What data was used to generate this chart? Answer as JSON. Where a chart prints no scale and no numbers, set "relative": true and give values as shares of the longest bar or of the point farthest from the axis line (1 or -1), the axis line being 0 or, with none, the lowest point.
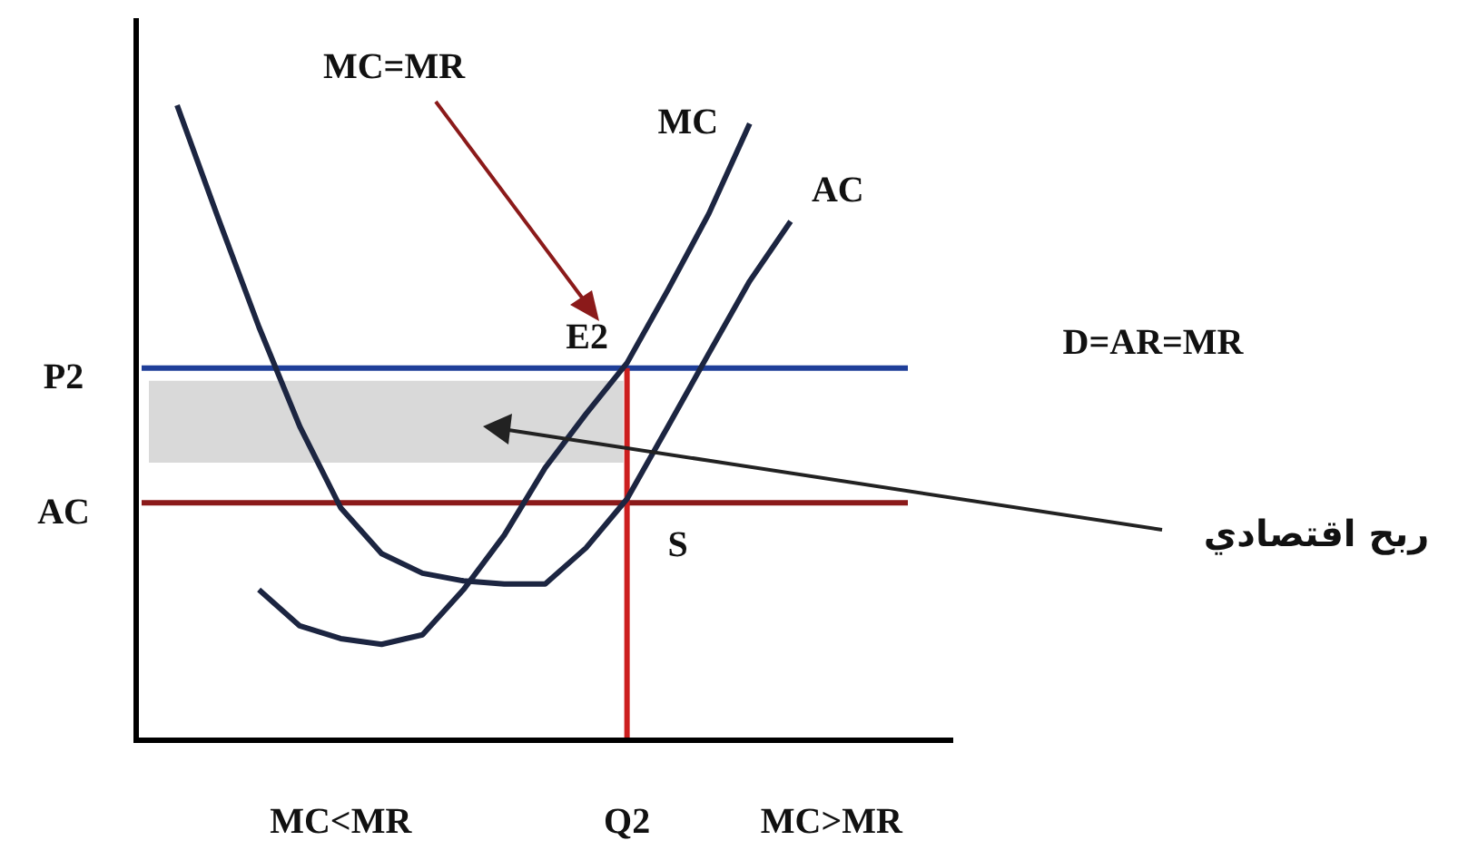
{
  "chart_data": {
    "type": "line",
    "relative": true,
    "legend": false,
    "marker": "none",
    "categories": [
      null,
      null,
      null,
      null,
      null,
      "MC<MR",
      null,
      null,
      null,
      null,
      null,
      null,
      "Q2",
      null,
      null,
      null,
      null,
      "MC>MR",
      null,
      null
    ],
    "series": [
      {
        "name": "AC",
        "color": "#1c2541",
        "values": [
          null,
          1.0,
          0.823,
          0.651,
          0.494,
          0.366,
          0.294,
          0.263,
          0.251,
          0.246,
          0.246,
          0.303,
          0.38,
          0.494,
          0.609,
          0.723,
          0.817,
          null,
          null,
          null
        ]
      },
      {
        "name": "MC",
        "color": "#1c2541",
        "values": [
          null,
          null,
          null,
          0.237,
          0.18,
          0.16,
          0.151,
          0.166,
          0.237,
          0.323,
          0.429,
          0.514,
          0.594,
          0.709,
          0.829,
          0.971,
          null,
          null,
          null,
          null
        ]
      }
    ],
    "ref_lines": [
      {
        "axis": "y",
        "value": 0.586,
        "label": "P2",
        "color": "#1f3f99"
      },
      {
        "axis": "y",
        "value": 0.374,
        "label": "AC",
        "color": "#8b1a1a"
      },
      {
        "axis": "x",
        "value": "Q2",
        "color": "#cc1f1f"
      }
    ],
    "bands": [
      {
        "axis": "y",
        "from": 0.437,
        "to": 0.566,
        "color": "#d9d9d9"
      }
    ],
    "annotations": [
      "MC=MR",
      {
        "text": "E2",
        "x": "Q2",
        "y": 0.586
      },
      {
        "text": "S",
        "x": "Q2",
        "y": 0.374
      },
      "D=AR=MR",
      "ربح اقتصادي"
    ]
  }
}
